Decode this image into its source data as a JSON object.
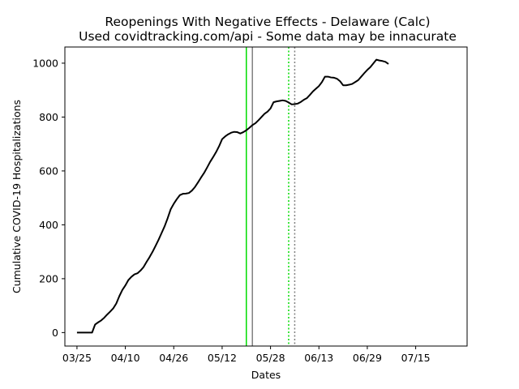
{
  "chart_data": {
    "type": "line",
    "title": "Reopenings With Negative Effects - Delaware (Calc)",
    "subtitle": "Used covidtracking.com/api - Some data may be innacurate",
    "xlabel": "Dates",
    "ylabel": "Cumulative COVID-19 Hospitalizations",
    "x_start": "2020-03-25",
    "x_end": "2020-07-28",
    "xlim": [
      "2020-03-21",
      "2020-08-01"
    ],
    "ylim": [
      -50,
      1060
    ],
    "x_ticks": [
      "03/25",
      "04/10",
      "04/26",
      "05/12",
      "05/28",
      "06/13",
      "06/29",
      "07/15"
    ],
    "x_tick_dates": [
      "2020-03-25",
      "2020-04-10",
      "2020-04-26",
      "2020-05-12",
      "2020-05-28",
      "2020-06-13",
      "2020-06-29",
      "2020-07-15"
    ],
    "y_ticks": [
      0,
      200,
      400,
      600,
      800,
      1000
    ],
    "grid": false,
    "series": [
      {
        "color": "#000000",
        "values": [
          0,
          0,
          0,
          0,
          0,
          0,
          30,
          38,
          45,
          55,
          67,
          78,
          90,
          108,
          135,
          158,
          175,
          195,
          207,
          216,
          220,
          230,
          243,
          262,
          280,
          300,
          322,
          345,
          370,
          395,
          425,
          458,
          478,
          495,
          510,
          515,
          516,
          518,
          527,
          540,
          557,
          575,
          592,
          612,
          633,
          651,
          670,
          692,
          718,
          728,
          736,
          742,
          745,
          744,
          739,
          744,
          751,
          760,
          770,
          777,
          788,
          800,
          812,
          820,
          832,
          855,
          858,
          860,
          862,
          860,
          854,
          847,
          848,
          850,
          856,
          864,
          870,
          882,
          895,
          905,
          915,
          930,
          950,
          950,
          947,
          946,
          942,
          933,
          918,
          918,
          920,
          923,
          930,
          937,
          950,
          963,
          975,
          985,
          999,
          1013,
          1010,
          1008,
          1005,
          997
        ]
      }
    ],
    "vertical_lines": [
      {
        "date": "2020-05-20",
        "color": "#00dd00",
        "style": "solid"
      },
      {
        "date": "2020-05-22",
        "color": "#808080",
        "style": "solid"
      },
      {
        "date": "2020-06-03",
        "color": "#00dd00",
        "style": "dotted"
      },
      {
        "date": "2020-06-05",
        "color": "#808080",
        "style": "dotted"
      }
    ]
  }
}
